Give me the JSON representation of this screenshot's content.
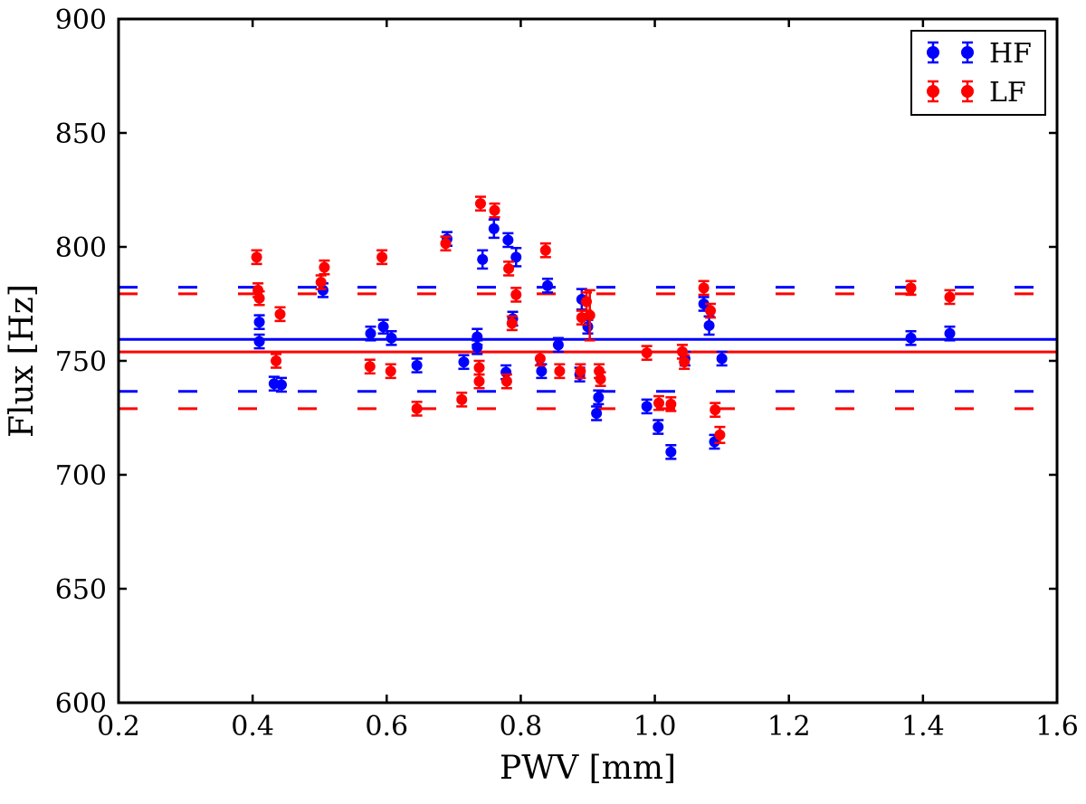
{
  "figure": {
    "background": "#ffffff",
    "frame_color": "#000000"
  },
  "chart_data": {
    "type": "scatter",
    "title": "",
    "xlabel": "PWV [mm]",
    "ylabel": "Flux [Hz]",
    "xlim": [
      0.2,
      1.6
    ],
    "ylim": [
      600,
      900
    ],
    "xticks": [
      0.2,
      0.4,
      0.6,
      0.8,
      1.0,
      1.2,
      1.4,
      1.6
    ],
    "yticks": [
      600,
      650,
      700,
      750,
      800,
      850,
      900
    ],
    "grid": false,
    "legend": {
      "position": "upper right",
      "entries": [
        {
          "label": "HF",
          "color": "#0000ff"
        },
        {
          "label": "LF",
          "color": "#ff0000"
        }
      ]
    },
    "hlines": [
      {
        "series": "HF",
        "style": "solid",
        "y": 759.4,
        "color": "#0000ff"
      },
      {
        "series": "HF",
        "style": "dashed",
        "y": 782.3,
        "color": "#0000ff"
      },
      {
        "series": "HF",
        "style": "dashed",
        "y": 736.6,
        "color": "#0000ff"
      },
      {
        "series": "LF",
        "style": "solid",
        "y": 753.9,
        "color": "#ff0000"
      },
      {
        "series": "LF",
        "style": "dashed",
        "y": 779.4,
        "color": "#ff0000"
      },
      {
        "series": "LF",
        "style": "dashed",
        "y": 729.0,
        "color": "#ff0000"
      }
    ],
    "series": [
      {
        "name": "HF",
        "color": "#0000ff",
        "points": [
          [
            0.41,
            767.0,
            3
          ],
          [
            0.41,
            758.5,
            3
          ],
          [
            0.432,
            740.0,
            3
          ],
          [
            0.443,
            739.5,
            3
          ],
          [
            0.505,
            781.0,
            3
          ],
          [
            0.576,
            762.0,
            3
          ],
          [
            0.595,
            765.0,
            3
          ],
          [
            0.607,
            760.0,
            3
          ],
          [
            0.645,
            748.0,
            3
          ],
          [
            0.69,
            803.5,
            3
          ],
          [
            0.715,
            749.5,
            3
          ],
          [
            0.735,
            760.5,
            3.5
          ],
          [
            0.735,
            756.0,
            3
          ],
          [
            0.743,
            794.5,
            4
          ],
          [
            0.76,
            808.0,
            4
          ],
          [
            0.781,
            803.0,
            3
          ],
          [
            0.788,
            768.5,
            3
          ],
          [
            0.793,
            795.5,
            4
          ],
          [
            0.778,
            745.0,
            3
          ],
          [
            0.831,
            745.5,
            3
          ],
          [
            0.84,
            783.0,
            3
          ],
          [
            0.856,
            757.0,
            3
          ],
          [
            0.891,
            777.0,
            4.5
          ],
          [
            0.888,
            744.0,
            3
          ],
          [
            0.9,
            765.0,
            3
          ],
          [
            0.916,
            734.0,
            3
          ],
          [
            0.913,
            727.0,
            3
          ],
          [
            0.988,
            730.0,
            3
          ],
          [
            1.005,
            721.0,
            3
          ],
          [
            1.024,
            710.0,
            3
          ],
          [
            1.045,
            751.0,
            3
          ],
          [
            1.073,
            775.0,
            3
          ],
          [
            1.081,
            765.5,
            4
          ],
          [
            1.089,
            714.5,
            3
          ],
          [
            1.1,
            751.0,
            3
          ],
          [
            1.382,
            760.0,
            3
          ],
          [
            1.44,
            762.0,
            3
          ]
        ]
      },
      {
        "name": "LF",
        "color": "#ff0000",
        "points": [
          [
            0.406,
            795.5,
            3
          ],
          [
            0.408,
            781.0,
            3
          ],
          [
            0.41,
            777.5,
            3
          ],
          [
            0.441,
            770.5,
            3
          ],
          [
            0.435,
            750.0,
            3
          ],
          [
            0.502,
            784.5,
            3
          ],
          [
            0.507,
            791.0,
            3
          ],
          [
            0.575,
            747.5,
            3
          ],
          [
            0.593,
            795.5,
            3
          ],
          [
            0.606,
            745.5,
            3
          ],
          [
            0.645,
            729.0,
            3
          ],
          [
            0.688,
            801.5,
            3
          ],
          [
            0.712,
            733.0,
            3
          ],
          [
            0.738,
            747.0,
            3
          ],
          [
            0.738,
            741.0,
            3
          ],
          [
            0.74,
            819.0,
            3
          ],
          [
            0.761,
            816.0,
            3
          ],
          [
            0.782,
            790.5,
            3
          ],
          [
            0.779,
            741.0,
            3
          ],
          [
            0.793,
            779.0,
            3
          ],
          [
            0.787,
            766.5,
            3
          ],
          [
            0.829,
            751.0,
            3
          ],
          [
            0.837,
            798.5,
            3
          ],
          [
            0.858,
            745.5,
            3
          ],
          [
            0.889,
            745.5,
            3
          ],
          [
            0.891,
            769.0,
            3
          ],
          [
            0.898,
            776.0,
            4
          ],
          [
            0.903,
            770.0,
            11
          ],
          [
            0.917,
            745.5,
            3
          ],
          [
            0.919,
            742.0,
            3
          ],
          [
            0.988,
            753.5,
            3
          ],
          [
            1.006,
            731.5,
            3
          ],
          [
            1.024,
            731.0,
            3
          ],
          [
            1.041,
            754.0,
            3
          ],
          [
            1.044,
            749.5,
            3
          ],
          [
            1.073,
            782.0,
            3
          ],
          [
            1.083,
            772.0,
            3
          ],
          [
            1.09,
            728.5,
            3
          ],
          [
            1.097,
            717.5,
            3.5
          ],
          [
            1.382,
            782.0,
            3
          ],
          [
            1.44,
            778.0,
            3
          ]
        ]
      }
    ]
  }
}
